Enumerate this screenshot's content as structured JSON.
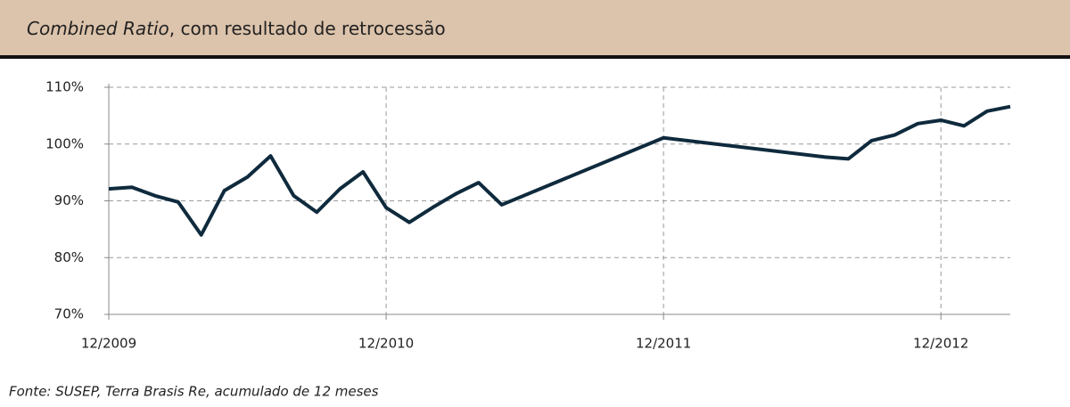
{
  "chart_data": {
    "type": "line",
    "title": {
      "emphasis": "Combined Ratio",
      "text": ", com resultado de retrocessão"
    },
    "source": "Fonte:  SUSEP, Terra Brasis Re, acumulado de 12 meses",
    "x": [
      "12/2009",
      "01/2010",
      "02/2010",
      "03/2010",
      "04/2010",
      "05/2010",
      "06/2010",
      "07/2010",
      "08/2010",
      "09/2010",
      "10/2010",
      "11/2010",
      "12/2010",
      "01/2011",
      "02/2011",
      "03/2011",
      "04/2011",
      "05/2011",
      "12/2011",
      "07/2012",
      "08/2012",
      "09/2012",
      "10/2012",
      "11/2012",
      "12/2012",
      "01/2013",
      "02/2013",
      "03/2013"
    ],
    "series": [
      {
        "name": "Combined Ratio",
        "color": "#0f2a3d",
        "values": [
          92.1,
          92.4,
          90.9,
          89.8,
          84.0,
          91.8,
          94.2,
          97.9,
          90.9,
          88.0,
          92.1,
          95.1,
          88.8,
          86.2,
          88.8,
          91.2,
          93.2,
          89.3,
          101.1,
          97.7,
          97.4,
          100.6,
          101.6,
          103.6,
          104.2,
          103.2,
          105.8,
          106.6
        ]
      }
    ],
    "xlim": [
      "12/2009",
      "03/2013"
    ],
    "xticks": [
      "12/2009",
      "12/2010",
      "12/2011",
      "12/2012"
    ],
    "ylim": [
      70,
      110
    ],
    "yticks": [
      {
        "value": 70,
        "label": "70%"
      },
      {
        "value": 80,
        "label": "80%"
      },
      {
        "value": 90,
        "label": "90%"
      },
      {
        "value": 100,
        "label": "100%"
      },
      {
        "value": 110,
        "label": "110%"
      }
    ],
    "grid": true
  }
}
